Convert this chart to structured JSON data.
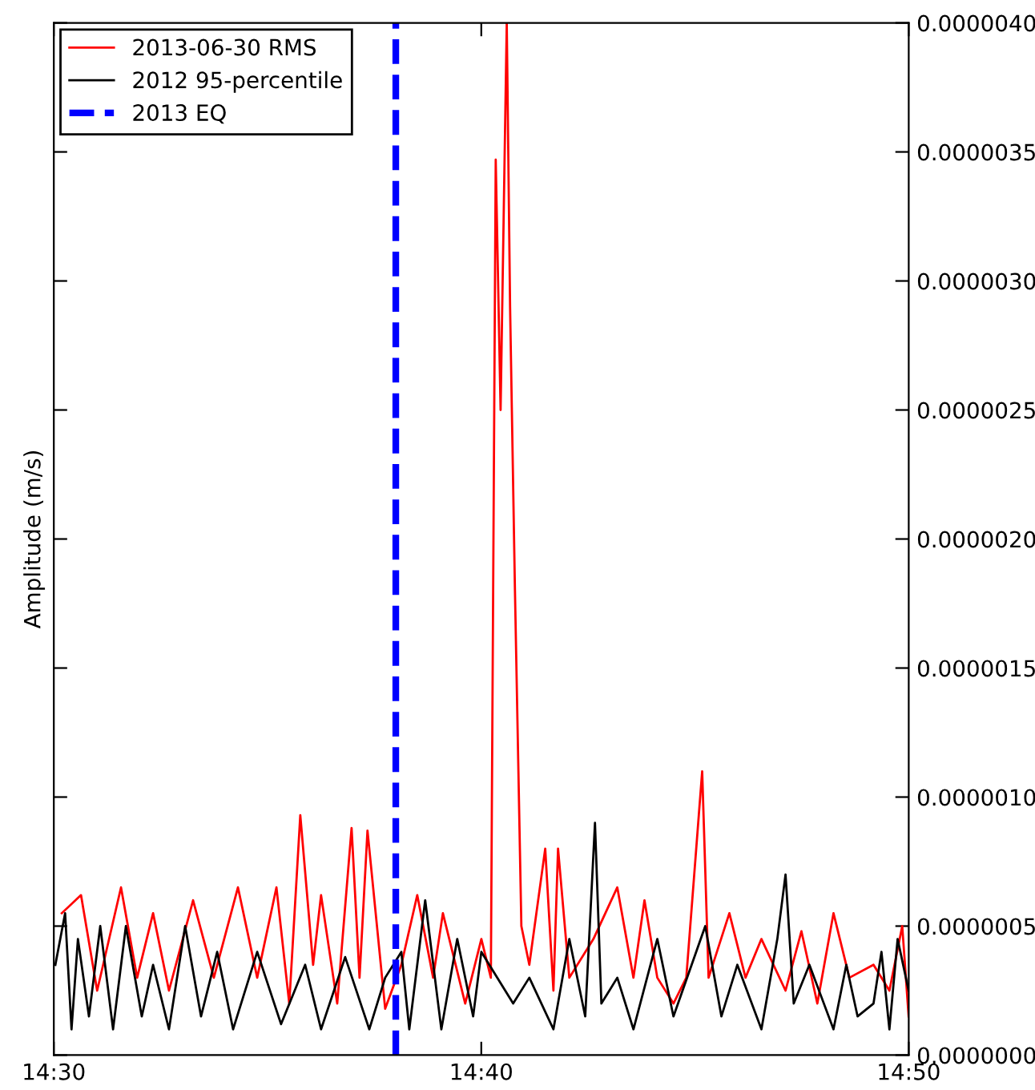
{
  "chart_data": {
    "type": "line",
    "ylabel": "Amplitude (m/s)",
    "legend": "top left",
    "grid": false,
    "line_style": "solid",
    "marker": "none",
    "xlim": [
      14.5,
      14.833333
    ],
    "ylim": [
      0,
      4e-06
    ],
    "xticks": [
      {
        "value": 14.5,
        "label": "14:30"
      },
      {
        "value": 14.666667,
        "label": "14:40"
      },
      {
        "value": 14.833333,
        "label": "14:50"
      }
    ],
    "yticks": [
      {
        "value": 0,
        "label": "0.0000000"
      },
      {
        "value": 5e-07,
        "label": "0.0000005"
      },
      {
        "value": 1e-06,
        "label": "0.0000010"
      },
      {
        "value": 1.5e-06,
        "label": "0.0000015"
      },
      {
        "value": 2e-06,
        "label": "0.0000020"
      },
      {
        "value": 2.5e-06,
        "label": "0.0000025"
      },
      {
        "value": 3e-06,
        "label": "0.0000030"
      },
      {
        "value": 3.5e-06,
        "label": "0.0000035"
      },
      {
        "value": 4e-06,
        "label": "0.0000040"
      }
    ],
    "series": [
      {
        "name": "2013-06-30 RMS",
        "color": "#ff0000",
        "x": [
          14.5031,
          14.5106,
          14.5169,
          14.5262,
          14.5325,
          14.5387,
          14.5449,
          14.5543,
          14.5624,
          14.5718,
          14.5793,
          14.5868,
          14.5918,
          14.5961,
          14.6011,
          14.6042,
          14.6105,
          14.6161,
          14.6192,
          14.6223,
          14.6292,
          14.6355,
          14.6417,
          14.6479,
          14.6517,
          14.6604,
          14.6667,
          14.6704,
          14.6723,
          14.6742,
          14.6766,
          14.6779,
          14.6798,
          14.6823,
          14.6854,
          14.6916,
          14.6948,
          14.6966,
          14.701,
          14.7104,
          14.7197,
          14.726,
          14.7303,
          14.7353,
          14.7416,
          14.7466,
          14.7528,
          14.7553,
          14.7634,
          14.7697,
          14.7759,
          14.7853,
          14.7915,
          14.7977,
          14.804,
          14.8102,
          14.8196,
          14.8258,
          14.8308,
          14.8333
        ],
        "values": [
          5.5e-07,
          6.2e-07,
          2.5e-07,
          6.5e-07,
          3e-07,
          5.5e-07,
          2.5e-07,
          6e-07,
          3e-07,
          6.5e-07,
          3e-07,
          6.5e-07,
          2e-07,
          9.3e-07,
          3.5e-07,
          6.2e-07,
          2e-07,
          8.8e-07,
          3e-07,
          8.7e-07,
          1.8e-07,
          3.5e-07,
          6.2e-07,
          3e-07,
          5.5e-07,
          2e-07,
          4.5e-07,
          3e-07,
          3.47e-06,
          2.5e-06,
          4e-06,
          2.9e-06,
          1.8e-06,
          5e-07,
          3.5e-07,
          8e-07,
          2.5e-07,
          8e-07,
          3e-07,
          4.5e-07,
          6.5e-07,
          3e-07,
          6e-07,
          3e-07,
          2e-07,
          3e-07,
          1.1e-06,
          3e-07,
          5.5e-07,
          3e-07,
          4.5e-07,
          2.5e-07,
          4.8e-07,
          2e-07,
          5.5e-07,
          3e-07,
          3.5e-07,
          2.5e-07,
          5e-07,
          1.5e-07
        ]
      },
      {
        "name": "2012 95-percentile",
        "color": "#000000",
        "x": [
          14.5006,
          14.5044,
          14.5069,
          14.5094,
          14.5137,
          14.5181,
          14.5231,
          14.5281,
          14.5343,
          14.5387,
          14.5449,
          14.5512,
          14.5574,
          14.5637,
          14.5699,
          14.5793,
          14.5886,
          14.598,
          14.6042,
          14.6136,
          14.623,
          14.6292,
          14.6355,
          14.6386,
          14.6448,
          14.6511,
          14.6573,
          14.6635,
          14.6667,
          14.6791,
          14.6854,
          14.6948,
          14.701,
          14.7072,
          14.711,
          14.7135,
          14.7197,
          14.726,
          14.7353,
          14.7416,
          14.754,
          14.7603,
          14.7665,
          14.7759,
          14.7821,
          14.7853,
          14.7885,
          14.7946,
          14.804,
          14.809,
          14.8134,
          14.8196,
          14.8227,
          14.8258,
          14.829,
          14.8333
        ],
        "values": [
          3.5e-07,
          5.5e-07,
          1e-07,
          4.5e-07,
          1.5e-07,
          5e-07,
          1e-07,
          5e-07,
          1.5e-07,
          3.5e-07,
          1e-07,
          5e-07,
          1.5e-07,
          4e-07,
          1e-07,
          4e-07,
          1.2e-07,
          3.5e-07,
          1e-07,
          3.8e-07,
          1e-07,
          3e-07,
          4e-07,
          1e-07,
          6e-07,
          1e-07,
          4.5e-07,
          1.5e-07,
          4e-07,
          2e-07,
          3e-07,
          1e-07,
          4.5e-07,
          1.5e-07,
          9e-07,
          2e-07,
          3e-07,
          1e-07,
          4.5e-07,
          1.5e-07,
          5e-07,
          1.5e-07,
          3.5e-07,
          1e-07,
          4.5e-07,
          7e-07,
          2e-07,
          3.5e-07,
          1e-07,
          3.5e-07,
          1.5e-07,
          2e-07,
          4e-07,
          1e-07,
          4.5e-07,
          2.5e-07
        ]
      },
      {
        "name": "2013 EQ",
        "color": "#0000ff",
        "line_style": "dashed",
        "x": [
          14.633333,
          14.633333
        ],
        "values": [
          0,
          4e-06
        ]
      }
    ]
  }
}
